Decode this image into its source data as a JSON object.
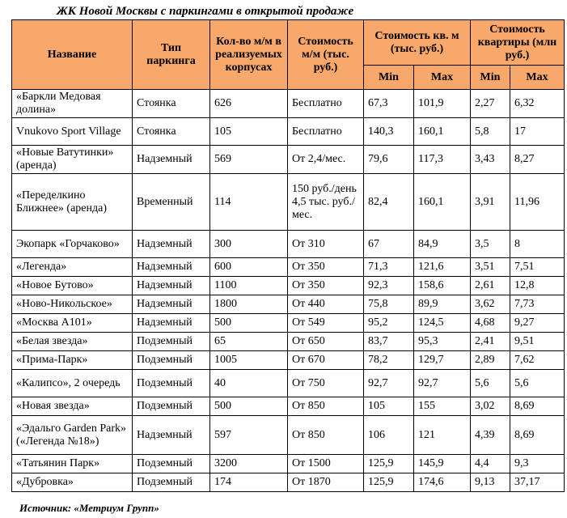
{
  "title": "ЖК Новой Москвы с паркингами в открытой продаже",
  "headers": {
    "name": "Название",
    "parking_type": "Тип паркинга",
    "count": "Кол-во м/м в реализуемых корпусах",
    "cost_mm": "Стоимость м/м (тыс. руб.)",
    "cost_sqm": "Стоимость кв. м (тыс. руб.)",
    "cost_flat": "Стоимость квартиры (млн руб.)",
    "min": "Min",
    "max": "Max"
  },
  "rows": [
    {
      "name": "«Баркли Медовая долина»",
      "type": "Стоянка",
      "count": "626",
      "cost": "Бесплатно",
      "sqm_min": "67,3",
      "sqm_max": "101,9",
      "flat_min": "2,27",
      "flat_max": "6,32"
    },
    {
      "name": "Vnukovo Sport Village",
      "type": "Стоянка",
      "count": "105",
      "cost": "Бесплатно",
      "sqm_min": "140,3",
      "sqm_max": "160,1",
      "flat_min": "5,8",
      "flat_max": "17"
    },
    {
      "name": "«Новые Ватутинки» (аренда)",
      "type": "Надземный",
      "count": "569",
      "cost": "От 2,4/мес.",
      "sqm_min": "79,6",
      "sqm_max": "117,3",
      "flat_min": "3,43",
      "flat_max": "8,27"
    },
    {
      "name": "«Переделкино Ближнее» (аренда)",
      "type": "Временный",
      "count": "114",
      "cost": "150 руб./день 4,5 тыс. руб./мес.",
      "sqm_min": "82,4",
      "sqm_max": "160,1",
      "flat_min": "3,91",
      "flat_max": "11,96"
    },
    {
      "name": "Экопарк «Горчаково»",
      "type": "Надземный",
      "count": "300",
      "cost": "От 310",
      "sqm_min": "67",
      "sqm_max": "84,9",
      "flat_min": "3,5",
      "flat_max": "8"
    },
    {
      "name": "«Легенда»",
      "type": "Надземный",
      "count": "600",
      "cost": "От 350",
      "sqm_min": "71,3",
      "sqm_max": "121,6",
      "flat_min": "3,51",
      "flat_max": "7,51"
    },
    {
      "name": "«Новое Бутово»",
      "type": "Надземный",
      "count": "1100",
      "cost": "От 350",
      "sqm_min": "92,3",
      "sqm_max": "158,6",
      "flat_min": "2,61",
      "flat_max": "12,8"
    },
    {
      "name": "«Ново-Никольское»",
      "type": "Надземный",
      "count": "1800",
      "cost": "От 440",
      "sqm_min": "75,8",
      "sqm_max": "89,9",
      "flat_min": "3,62",
      "flat_max": "7,73"
    },
    {
      "name": "«Москва А101»",
      "type": "Надземный",
      "count": "500",
      "cost": "От 549",
      "sqm_min": "95,2",
      "sqm_max": "124,5",
      "flat_min": "4,68",
      "flat_max": "9,27"
    },
    {
      "name": "«Белая звезда»",
      "type": "Подземный",
      "count": "65",
      "cost": "От 650",
      "sqm_min": "83,7",
      "sqm_max": "95,3",
      "flat_min": "2,41",
      "flat_max": "9,51"
    },
    {
      "name": "«Прима-Парк»",
      "type": "Подземный",
      "count": "1005",
      "cost": "От 670",
      "sqm_min": "78,2",
      "sqm_max": "129,7",
      "flat_min": "2,89",
      "flat_max": "7,62"
    },
    {
      "name": "«Калипсо», 2 очередь",
      "type": "Подземный",
      "count": "40",
      "cost": "От 750",
      "sqm_min": "92,7",
      "sqm_max": "92,7",
      "flat_min": "5,6",
      "flat_max": "5,6"
    },
    {
      "name": "«Новая звезда»",
      "type": "Подземный",
      "count": "500",
      "cost": "От 850",
      "sqm_min": "105",
      "sqm_max": "155",
      "flat_min": "3,02",
      "flat_max": "8,69"
    },
    {
      "name": "«Эдальго Garden Park» («Легенда №18»)",
      "type": "Надземный",
      "count": "597",
      "cost": "От 850",
      "sqm_min": "106",
      "sqm_max": "121",
      "flat_min": "4,39",
      "flat_max": "8,69"
    },
    {
      "name": "«Татьянин Парк»",
      "type": "Подземный",
      "count": "3200",
      "cost": "От 1500",
      "sqm_min": "125,9",
      "sqm_max": "145,9",
      "flat_min": "4,4",
      "flat_max": "9,3"
    },
    {
      "name": "«Дубровка»",
      "type": "Подземный",
      "count": "174",
      "cost": "От 1870",
      "sqm_min": "125,9",
      "sqm_max": "174,6",
      "flat_min": "9,13",
      "flat_max": "37,17"
    }
  ],
  "source": "Источник: «Метриум Групп»",
  "colors": {
    "header_bg": "#f8a86a",
    "border": "#000000"
  }
}
